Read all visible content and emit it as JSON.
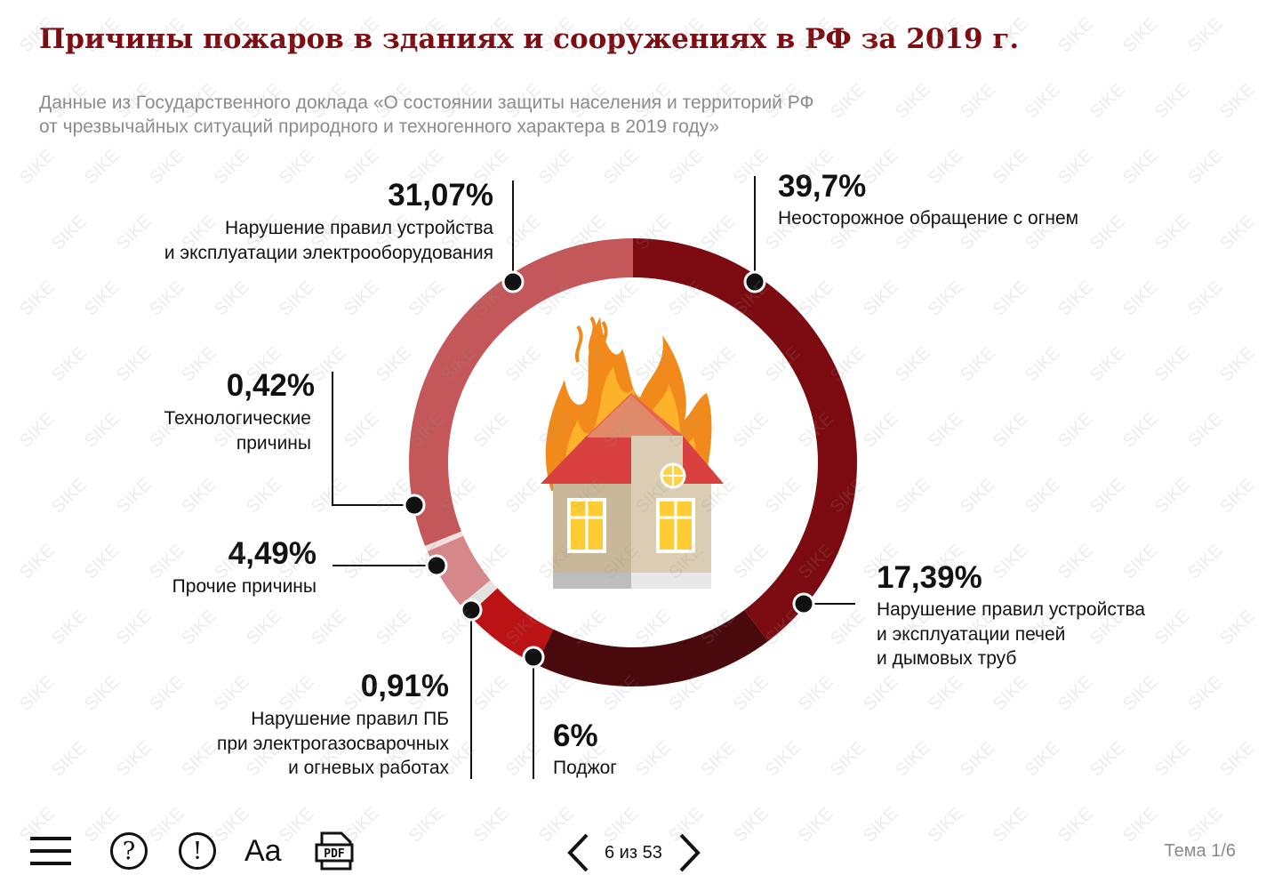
{
  "title": "Причины пожаров в зданиях и сооружениях в РФ за 2019 г.",
  "subtitle": {
    "line1": "Данные из Государственного доклада «О состоянии защиты населения и территорий РФ",
    "line2": "от чрезвычайных ситуаций природного и техногенного характера в 2019 году»"
  },
  "chart_data": {
    "type": "pie",
    "donut": true,
    "title": "Причины пожаров в зданиях и сооружениях в РФ за 2019 г.",
    "slices": [
      {
        "value": 39.7,
        "label": "39,7%",
        "lines": [
          "Неосторожное обращение с огнем"
        ],
        "color": "#7b0b11"
      },
      {
        "value": 17.39,
        "label": "17,39%",
        "lines": [
          "Нарушение правил устройства",
          "и эксплуатации печей",
          "и дымовых труб"
        ],
        "color": "#4a0a0d"
      },
      {
        "value": 6,
        "label": "6%",
        "lines": [
          "Поджог"
        ],
        "color": "#ba1215"
      },
      {
        "value": 0.91,
        "label": "0,91%",
        "lines": [
          "Нарушение правил ПБ",
          "при электрогазосварочных",
          "и огневых работах"
        ],
        "color": "#e2e2e2"
      },
      {
        "value": 4.49,
        "label": "4,49%",
        "lines": [
          "Прочие причины"
        ],
        "color": "#d6878a"
      },
      {
        "value": 0.42,
        "label": "0,42%",
        "lines": [
          "Технологические",
          "причины"
        ],
        "color": "#f5dede"
      },
      {
        "value": 31.07,
        "label": "31,07%",
        "lines": [
          "Нарушение правил устройства",
          "и эксплуатации электрооборудования"
        ],
        "color": "#c35759"
      }
    ]
  },
  "watermark": "SIKE",
  "toolbar": {
    "menu_icon": "menu-icon",
    "help_icon": "question-icon",
    "help_glyph": "?",
    "info_icon": "exclamation-icon",
    "info_glyph": "!",
    "font_label": "Aa",
    "pdf_label": "PDF"
  },
  "pager": {
    "text": "6 из 53"
  },
  "theme": "Тема 1/6"
}
